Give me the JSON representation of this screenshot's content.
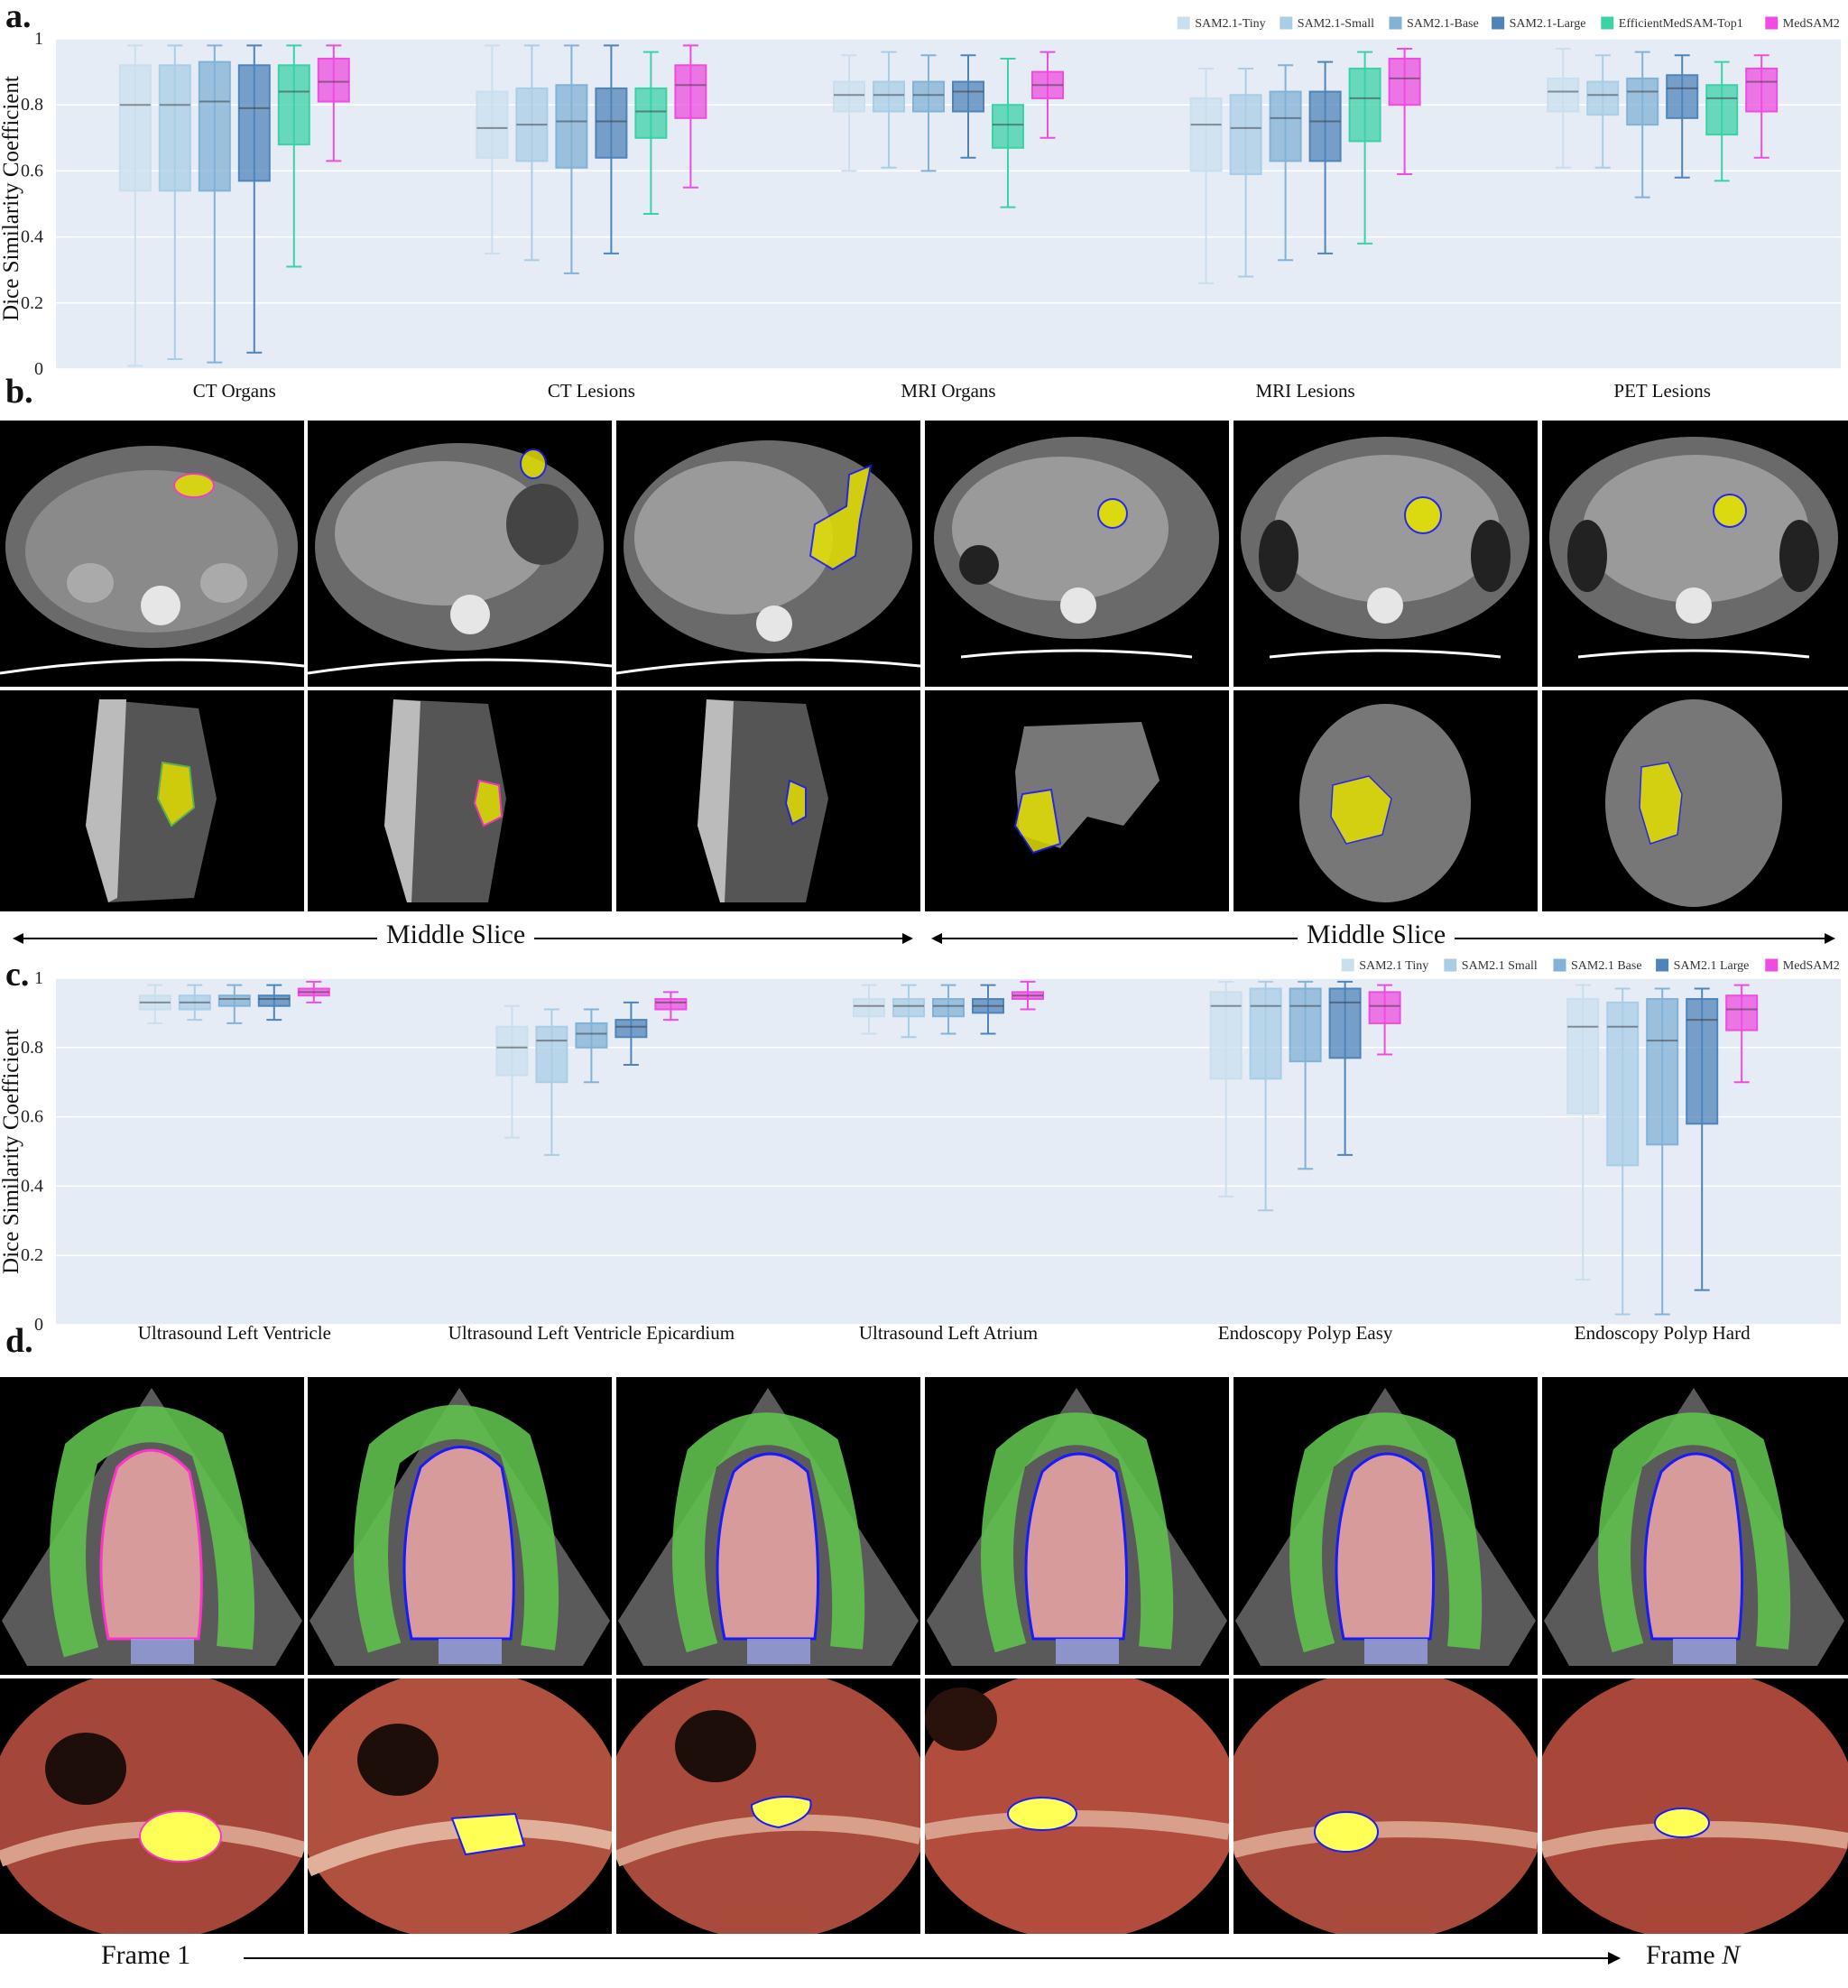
{
  "panels": {
    "a": {
      "letter": "a."
    },
    "b": {
      "letter": "b.",
      "left_arrow_label": "Middle Slice",
      "right_arrow_label": "Middle Slice"
    },
    "c": {
      "letter": "c."
    },
    "d": {
      "letter": "d.",
      "frame_start_label": "Frame 1",
      "frame_end_prefix": "Frame ",
      "frame_end_var": "N"
    }
  },
  "colors": {
    "tiny": "#c9dfee",
    "small": "#aacde6",
    "base": "#82b2d6",
    "large": "#4f84ba",
    "efficient": "#3cd2a5",
    "medsam2": "#ee4de0",
    "plot_bg": "#e5ecf6",
    "overlay_yellow": "#e3e000",
    "overlay_green": "#5fc04c",
    "overlay_red": "#d89b9b",
    "contour_blue": "#1a1aff",
    "contour_magenta": "#ff33cc"
  },
  "chart_data": [
    {
      "type": "box",
      "ylabel": "Dice Similarity Coefficient",
      "ylim": [
        0,
        1
      ],
      "yticks": [
        "0",
        "0.2",
        "0.4",
        "0.6",
        "0.8",
        "1"
      ],
      "legend_placement": "top-right",
      "grid": true,
      "categories": [
        "CT Organs",
        "CT Lesions",
        "MRI Organs",
        "MRI Lesions",
        "PET Lesions"
      ],
      "series": [
        {
          "name": "SAM2.1-Tiny",
          "color_key": "tiny",
          "boxes": [
            [
              0.01,
              0.54,
              0.8,
              0.92,
              0.98
            ],
            [
              0.35,
              0.64,
              0.73,
              0.84,
              0.98
            ],
            [
              0.6,
              0.78,
              0.83,
              0.87,
              0.95
            ],
            [
              0.26,
              0.6,
              0.74,
              0.82,
              0.91
            ],
            [
              0.61,
              0.78,
              0.84,
              0.88,
              0.97
            ]
          ]
        },
        {
          "name": "SAM2.1-Small",
          "color_key": "small",
          "boxes": [
            [
              0.03,
              0.54,
              0.8,
              0.92,
              0.98
            ],
            [
              0.33,
              0.63,
              0.74,
              0.85,
              0.98
            ],
            [
              0.61,
              0.78,
              0.83,
              0.87,
              0.96
            ],
            [
              0.28,
              0.59,
              0.73,
              0.83,
              0.91
            ],
            [
              0.61,
              0.77,
              0.83,
              0.87,
              0.95
            ]
          ]
        },
        {
          "name": "SAM2.1-Base",
          "color_key": "base",
          "boxes": [
            [
              0.02,
              0.54,
              0.81,
              0.93,
              0.98
            ],
            [
              0.29,
              0.61,
              0.75,
              0.86,
              0.98
            ],
            [
              0.6,
              0.78,
              0.83,
              0.87,
              0.95
            ],
            [
              0.33,
              0.63,
              0.76,
              0.84,
              0.92
            ],
            [
              0.52,
              0.74,
              0.84,
              0.88,
              0.96
            ]
          ]
        },
        {
          "name": "SAM2.1-Large",
          "color_key": "large",
          "boxes": [
            [
              0.05,
              0.57,
              0.79,
              0.92,
              0.98
            ],
            [
              0.35,
              0.64,
              0.75,
              0.85,
              0.98
            ],
            [
              0.64,
              0.78,
              0.84,
              0.87,
              0.95
            ],
            [
              0.35,
              0.63,
              0.75,
              0.84,
              0.93
            ],
            [
              0.58,
              0.76,
              0.85,
              0.89,
              0.95
            ]
          ]
        },
        {
          "name": "EfficientMedSAM-Top1",
          "color_key": "efficient",
          "boxes": [
            [
              0.31,
              0.68,
              0.84,
              0.92,
              0.98
            ],
            [
              0.47,
              0.7,
              0.78,
              0.85,
              0.96
            ],
            [
              0.49,
              0.67,
              0.74,
              0.8,
              0.94
            ],
            [
              0.38,
              0.69,
              0.82,
              0.91,
              0.96
            ],
            [
              0.57,
              0.71,
              0.82,
              0.86,
              0.93
            ]
          ]
        },
        {
          "name": "MedSAM2",
          "color_key": "medsam2",
          "boxes": [
            [
              0.63,
              0.81,
              0.87,
              0.94,
              0.98
            ],
            [
              0.55,
              0.76,
              0.86,
              0.92,
              0.98
            ],
            [
              0.7,
              0.82,
              0.86,
              0.9,
              0.96
            ],
            [
              0.59,
              0.8,
              0.88,
              0.94,
              0.97
            ],
            [
              0.64,
              0.78,
              0.87,
              0.91,
              0.95
            ]
          ]
        }
      ]
    },
    {
      "type": "box",
      "ylabel": "Dice Similarity Coefficient",
      "ylim": [
        0,
        1
      ],
      "yticks": [
        "0",
        "0.2",
        "0.4",
        "0.6",
        "0.8",
        "1"
      ],
      "legend_placement": "top-right",
      "grid": true,
      "categories": [
        "Ultrasound Left Ventricle",
        "Ultrasound Left Ventricle Epicardium",
        "Ultrasound Left Atrium",
        "Endoscopy Polyp Easy",
        "Endoscopy Polyp Hard"
      ],
      "series": [
        {
          "name": "SAM2.1 Tiny",
          "color_key": "tiny",
          "boxes": [
            [
              0.87,
              0.91,
              0.93,
              0.95,
              0.98
            ],
            [
              0.54,
              0.72,
              0.8,
              0.86,
              0.92
            ],
            [
              0.84,
              0.89,
              0.92,
              0.94,
              0.98
            ],
            [
              0.37,
              0.71,
              0.92,
              0.96,
              0.99
            ],
            [
              0.13,
              0.61,
              0.86,
              0.94,
              0.98
            ]
          ]
        },
        {
          "name": "SAM2.1 Small",
          "color_key": "small",
          "boxes": [
            [
              0.88,
              0.91,
              0.93,
              0.95,
              0.98
            ],
            [
              0.49,
              0.7,
              0.82,
              0.86,
              0.91
            ],
            [
              0.83,
              0.89,
              0.92,
              0.94,
              0.98
            ],
            [
              0.33,
              0.71,
              0.92,
              0.97,
              0.99
            ],
            [
              0.03,
              0.46,
              0.86,
              0.93,
              0.97
            ]
          ]
        },
        {
          "name": "SAM2.1 Base",
          "color_key": "base",
          "boxes": [
            [
              0.87,
              0.92,
              0.94,
              0.95,
              0.98
            ],
            [
              0.7,
              0.8,
              0.84,
              0.87,
              0.91
            ],
            [
              0.84,
              0.89,
              0.92,
              0.94,
              0.98
            ],
            [
              0.45,
              0.76,
              0.92,
              0.97,
              0.99
            ],
            [
              0.03,
              0.52,
              0.82,
              0.94,
              0.97
            ]
          ]
        },
        {
          "name": "SAM2.1 Large",
          "color_key": "large",
          "boxes": [
            [
              0.88,
              0.92,
              0.94,
              0.95,
              0.98
            ],
            [
              0.75,
              0.83,
              0.86,
              0.88,
              0.93
            ],
            [
              0.84,
              0.9,
              0.92,
              0.94,
              0.98
            ],
            [
              0.49,
              0.77,
              0.93,
              0.97,
              0.99
            ],
            [
              0.1,
              0.58,
              0.88,
              0.94,
              0.97
            ]
          ]
        },
        {
          "name": "MedSAM2",
          "color_key": "medsam2",
          "boxes": [
            [
              0.93,
              0.95,
              0.96,
              0.97,
              0.99
            ],
            [
              0.88,
              0.91,
              0.93,
              0.94,
              0.96
            ],
            [
              0.91,
              0.94,
              0.95,
              0.96,
              0.99
            ],
            [
              0.78,
              0.87,
              0.92,
              0.96,
              0.98
            ],
            [
              0.7,
              0.85,
              0.91,
              0.95,
              0.98
            ]
          ]
        }
      ]
    }
  ]
}
